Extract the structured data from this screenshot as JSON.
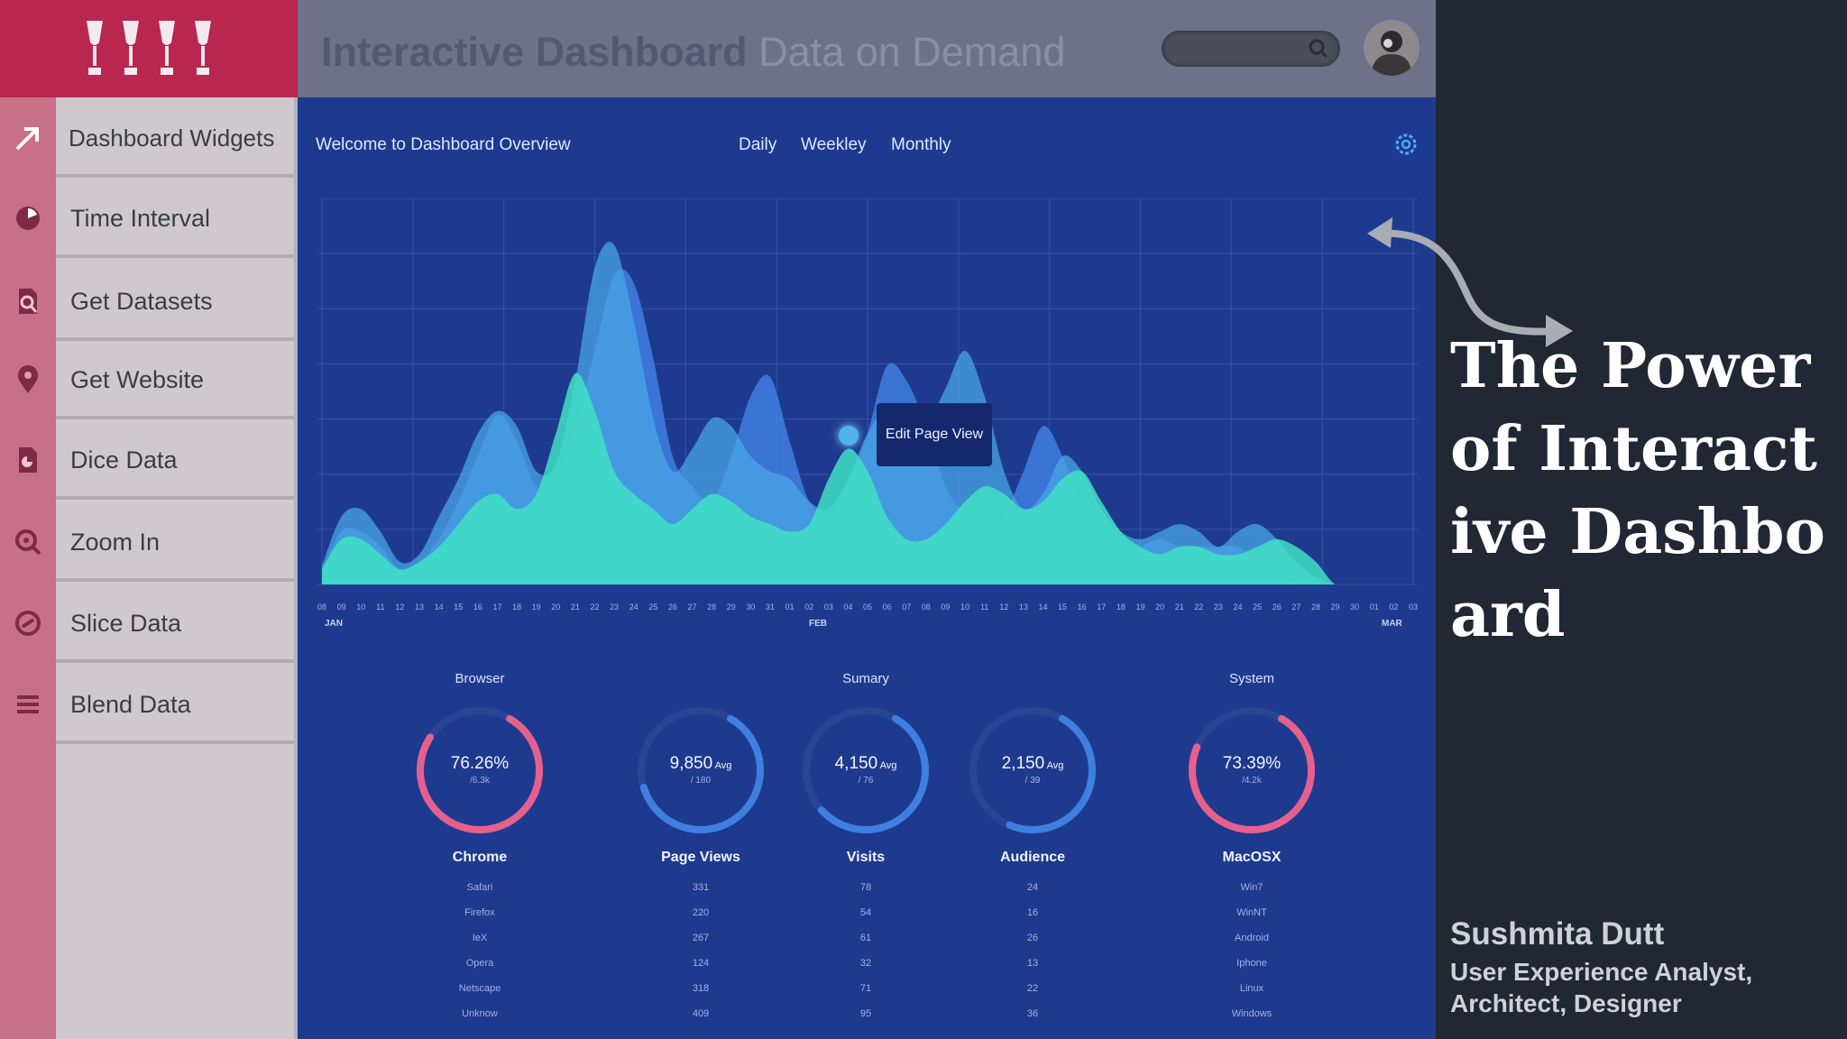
{
  "header": {
    "title_bold": "Interactive Dashboard",
    "title_light": " Data on Demand",
    "search_placeholder": ""
  },
  "sidebar": {
    "items": [
      {
        "label": "Dashboard Widgets",
        "icon": "arrow-icon"
      },
      {
        "label": "Time Interval",
        "icon": "pie-icon"
      },
      {
        "label": "Get Datasets",
        "icon": "document-search-icon"
      },
      {
        "label": "Get Website",
        "icon": "location-pin-icon"
      },
      {
        "label": "Dice Data",
        "icon": "document-pie-icon"
      },
      {
        "label": "Zoom In",
        "icon": "zoom-in-icon"
      },
      {
        "label": "Slice Data",
        "icon": "slice-icon"
      },
      {
        "label": "Blend Data",
        "icon": "layers-icon"
      }
    ]
  },
  "dashboard": {
    "welcome": "Welcome to Dashboard Overview",
    "tabs": [
      "Daily",
      "Weekley",
      "Monthly"
    ],
    "tooltip": "Edit Page View",
    "months": [
      "JAN",
      "FEB",
      "MAR"
    ]
  },
  "chart_data": {
    "type": "area",
    "x": [
      "08",
      "09",
      "10",
      "11",
      "12",
      "13",
      "14",
      "15",
      "16",
      "17",
      "18",
      "19",
      "20",
      "21",
      "22",
      "23",
      "24",
      "25",
      "26",
      "27",
      "28",
      "29",
      "30",
      "31",
      "01",
      "02",
      "03",
      "04",
      "05",
      "06",
      "07",
      "08",
      "09",
      "10",
      "11",
      "12",
      "13",
      "14",
      "15",
      "16",
      "17",
      "18",
      "19",
      "20",
      "21",
      "22",
      "23",
      "24",
      "25",
      "26",
      "27",
      "28",
      "29",
      "30",
      "01",
      "02",
      "03"
    ],
    "series": [
      {
        "values": [
          0.04,
          0.14,
          0.14,
          0.1,
          0.04,
          0.06,
          0.12,
          0.22,
          0.34,
          0.45,
          0.38,
          0.26,
          0.28,
          0.42,
          0.62,
          0.82,
          0.8,
          0.6,
          0.34,
          0.26,
          0.22,
          0.34,
          0.5,
          0.55,
          0.38,
          0.22,
          0.18,
          0.26,
          0.4,
          0.58,
          0.54,
          0.42,
          0.26,
          0.18,
          0.12,
          0.18,
          0.3,
          0.42,
          0.34,
          0.2,
          0.12,
          0.08,
          0.1,
          0.12,
          0.1,
          0.1,
          0.1,
          0.1,
          0.06,
          0.02,
          0.0,
          0.0,
          0.0,
          0.0,
          0.0,
          0.0,
          0.0
        ]
      },
      {
        "values": [
          0.05,
          0.18,
          0.2,
          0.14,
          0.06,
          0.08,
          0.18,
          0.28,
          0.4,
          0.46,
          0.42,
          0.3,
          0.32,
          0.54,
          0.84,
          0.9,
          0.7,
          0.44,
          0.3,
          0.36,
          0.44,
          0.42,
          0.34,
          0.3,
          0.28,
          0.22,
          0.2,
          0.28,
          0.4,
          0.46,
          0.4,
          0.42,
          0.52,
          0.62,
          0.5,
          0.3,
          0.2,
          0.24,
          0.34,
          0.3,
          0.2,
          0.14,
          0.12,
          0.14,
          0.16,
          0.14,
          0.1,
          0.14,
          0.16,
          0.12,
          0.06,
          0.02,
          0.0,
          0.0,
          0.0,
          0.0,
          0.0
        ]
      },
      {
        "values": [
          0.04,
          0.12,
          0.12,
          0.08,
          0.04,
          0.06,
          0.1,
          0.16,
          0.22,
          0.24,
          0.2,
          0.24,
          0.4,
          0.56,
          0.46,
          0.3,
          0.24,
          0.2,
          0.16,
          0.2,
          0.24,
          0.22,
          0.18,
          0.16,
          0.14,
          0.16,
          0.28,
          0.36,
          0.3,
          0.18,
          0.12,
          0.12,
          0.16,
          0.22,
          0.26,
          0.24,
          0.2,
          0.22,
          0.28,
          0.3,
          0.22,
          0.14,
          0.1,
          0.08,
          0.1,
          0.1,
          0.08,
          0.08,
          0.1,
          0.12,
          0.1,
          0.06,
          0.0,
          0.0,
          0.0,
          0.0,
          0.0
        ]
      }
    ]
  },
  "gauges": {
    "groups": [
      "Browser",
      "Sumary",
      "System"
    ],
    "items": [
      {
        "value": "76.26%",
        "unit": "",
        "sub": "/6.3k",
        "name": "Chrome",
        "fraction": 0.76,
        "color": "#e6608e",
        "list": [
          "Safari",
          "Firefox",
          "IeX",
          "Opera",
          "Netscape",
          "Unknow"
        ]
      },
      {
        "value": "9,850",
        "unit": "Avg",
        "sub": "/ 180",
        "name": "Page Views",
        "fraction": 0.62,
        "color": "#3f7fe0",
        "list": [
          "331",
          "220",
          "267",
          "124",
          "318",
          "409"
        ]
      },
      {
        "value": "4,150",
        "unit": "Avg",
        "sub": "/ 76",
        "name": "Visits",
        "fraction": 0.55,
        "color": "#3f7fe0",
        "list": [
          "78",
          "54",
          "61",
          "32",
          "71",
          "95"
        ]
      },
      {
        "value": "2,150",
        "unit": "Avg",
        "sub": "/ 39",
        "name": "Audience",
        "fraction": 0.48,
        "color": "#3f7fe0",
        "list": [
          "24",
          "16",
          "26",
          "13",
          "22",
          "36"
        ]
      },
      {
        "value": "73.39%",
        "unit": "",
        "sub": "/4.2k",
        "name": "MacOSX",
        "fraction": 0.73,
        "color": "#e6608e",
        "list": [
          "Win7",
          "WinNT",
          "Android",
          "Iphone",
          "Linux",
          "Windows"
        ]
      }
    ]
  },
  "right_panel": {
    "headline": "The Power of Interactive Dashboard",
    "author_name": "Sushmita Dutt",
    "author_role": "User Experience Analyst, Architect, Designer"
  },
  "colors": {
    "sidebar_logo": "#b9264f",
    "sidebar_strip": "#c86f89",
    "dashboard_bg": "#1e3a8e",
    "series_1": "#3f7fe0",
    "series_2": "#49a6e6",
    "series_3": "#3fe0c4",
    "accent_pink": "#e6608e"
  }
}
